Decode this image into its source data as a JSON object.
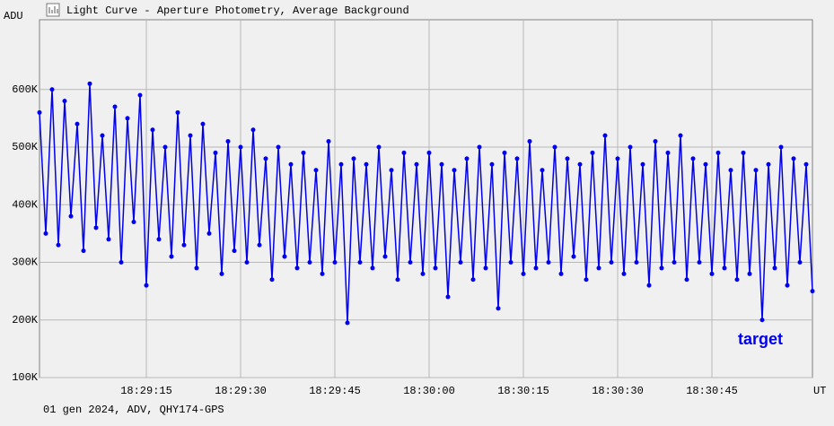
{
  "chart_data": {
    "type": "line",
    "title": "Light Curve - Aperture Photometry, Average Background",
    "y_label": "ADU",
    "x_label": "UT",
    "footer": "01 gen 2024, ADV, QHY174-GPS",
    "xlim": [
      "18:28:58",
      "18:31:01"
    ],
    "xticks": [
      "18:29:15",
      "18:29:30",
      "18:29:45",
      "18:30:00",
      "18:30:15",
      "18:30:30",
      "18:30:45"
    ],
    "ylim": [
      100000,
      721000
    ],
    "yticks": [
      {
        "value": 100000,
        "label": "100K"
      },
      {
        "value": 200000,
        "label": "200K"
      },
      {
        "value": 300000,
        "label": "300K"
      },
      {
        "value": 400000,
        "label": "400K"
      },
      {
        "value": 500000,
        "label": "500K"
      },
      {
        "value": 600000,
        "label": "600K"
      }
    ],
    "grid": true,
    "legend": "bottom-right",
    "x": [
      "18:28:58",
      "18:28:59",
      "18:29:00",
      "18:29:01",
      "18:29:02",
      "18:29:03",
      "18:29:04",
      "18:29:05",
      "18:29:06",
      "18:29:07",
      "18:29:08",
      "18:29:09",
      "18:29:10",
      "18:29:11",
      "18:29:12",
      "18:29:13",
      "18:29:14",
      "18:29:15",
      "18:29:16",
      "18:29:17",
      "18:29:18",
      "18:29:19",
      "18:29:20",
      "18:29:21",
      "18:29:22",
      "18:29:23",
      "18:29:24",
      "18:29:25",
      "18:29:26",
      "18:29:27",
      "18:29:28",
      "18:29:29",
      "18:29:30",
      "18:29:31",
      "18:29:32",
      "18:29:33",
      "18:29:34",
      "18:29:35",
      "18:29:36",
      "18:29:37",
      "18:29:38",
      "18:29:39",
      "18:29:40",
      "18:29:41",
      "18:29:42",
      "18:29:43",
      "18:29:44",
      "18:29:45",
      "18:29:46",
      "18:29:47",
      "18:29:48",
      "18:29:49",
      "18:29:50",
      "18:29:51",
      "18:29:52",
      "18:29:53",
      "18:29:54",
      "18:29:55",
      "18:29:56",
      "18:29:57",
      "18:29:58",
      "18:29:59",
      "18:30:00",
      "18:30:01",
      "18:30:02",
      "18:30:03",
      "18:30:04",
      "18:30:05",
      "18:30:06",
      "18:30:07",
      "18:30:08",
      "18:30:09",
      "18:30:10",
      "18:30:11",
      "18:30:12",
      "18:30:13",
      "18:30:14",
      "18:30:15",
      "18:30:16",
      "18:30:17",
      "18:30:18",
      "18:30:19",
      "18:30:20",
      "18:30:21",
      "18:30:22",
      "18:30:23",
      "18:30:24",
      "18:30:25",
      "18:30:26",
      "18:30:27",
      "18:30:28",
      "18:30:29",
      "18:30:30",
      "18:30:31",
      "18:30:32",
      "18:30:33",
      "18:30:34",
      "18:30:35",
      "18:30:36",
      "18:30:37",
      "18:30:38",
      "18:30:39",
      "18:30:40",
      "18:30:41",
      "18:30:42",
      "18:30:43",
      "18:30:44",
      "18:30:45",
      "18:30:46",
      "18:30:47",
      "18:30:48",
      "18:30:49",
      "18:30:50",
      "18:30:51",
      "18:30:52",
      "18:30:53",
      "18:30:54",
      "18:30:55",
      "18:30:56",
      "18:30:57",
      "18:30:58",
      "18:30:59",
      "18:31:00",
      "18:31:01"
    ],
    "series": [
      {
        "name": "target",
        "color": "#0000ee",
        "values": [
          560000,
          350000,
          600000,
          330000,
          580000,
          380000,
          540000,
          320000,
          610000,
          360000,
          520000,
          340000,
          570000,
          300000,
          550000,
          370000,
          590000,
          260000,
          530000,
          340000,
          500000,
          310000,
          560000,
          330000,
          520000,
          290000,
          540000,
          350000,
          490000,
          280000,
          510000,
          320000,
          500000,
          300000,
          530000,
          330000,
          480000,
          270000,
          500000,
          310000,
          470000,
          290000,
          490000,
          300000,
          460000,
          280000,
          510000,
          300000,
          470000,
          195000,
          480000,
          300000,
          470000,
          290000,
          500000,
          310000,
          460000,
          270000,
          490000,
          300000,
          470000,
          280000,
          490000,
          290000,
          470000,
          240000,
          460000,
          300000,
          480000,
          270000,
          500000,
          290000,
          470000,
          220000,
          490000,
          300000,
          480000,
          280000,
          510000,
          290000,
          460000,
          300000,
          500000,
          280000,
          480000,
          310000,
          470000,
          270000,
          490000,
          290000,
          520000,
          300000,
          480000,
          280000,
          500000,
          300000,
          470000,
          260000,
          510000,
          290000,
          490000,
          300000,
          520000,
          270000,
          480000,
          300000,
          470000,
          280000,
          490000,
          290000,
          460000,
          270000,
          490000,
          280000,
          460000,
          200000,
          470000,
          290000,
          500000,
          260000,
          480000,
          300000,
          470000,
          250000
        ]
      }
    ]
  }
}
